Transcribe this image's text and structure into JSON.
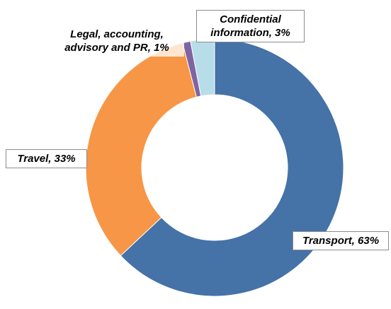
{
  "chart_data": {
    "type": "donut",
    "values": [
      63,
      33,
      1,
      3
    ],
    "value_labels": [
      "Transport, 63%",
      "Travel, 33%",
      "Legal, accounting, advisory and PR, 1%",
      "Confidential information, 3%"
    ],
    "colors": [
      "#4572a7",
      "#f79646",
      "#8064a2",
      "#b7dde8"
    ]
  }
}
